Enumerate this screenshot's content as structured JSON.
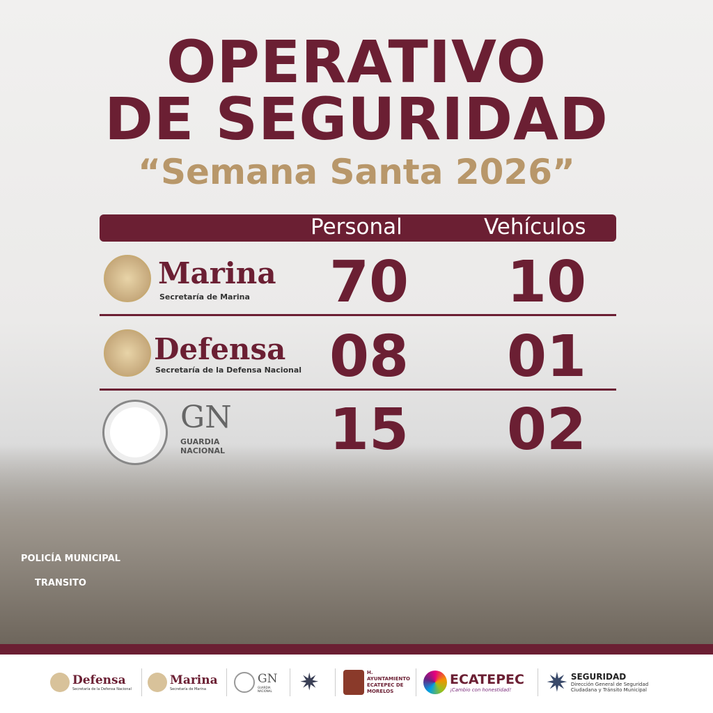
{
  "title": {
    "line1": "OPERATIVO",
    "line2": "DE SEGURIDAD",
    "subtitle": "“Semana Santa 2026”"
  },
  "table": {
    "headers": [
      "Personal",
      "Vehículos"
    ],
    "rows": [
      {
        "org": "Marina",
        "org_sub": "Secretaría de Marina",
        "personal": "70",
        "vehiculos": "10"
      },
      {
        "org": "Defensa",
        "org_sub": "Secretaría de la Defensa Nacional",
        "personal": "08",
        "vehiculos": "01"
      },
      {
        "org": "GN",
        "org_sub": "GUARDIA NACIONAL",
        "personal": "15",
        "vehiculos": "02"
      }
    ]
  },
  "photo": {
    "vehicle_label_1": "POLICÍA MUNICIPAL",
    "vehicle_label_2": "TRANSITO"
  },
  "footer": {
    "defensa": "Defensa",
    "defensa_sub": "Secretaría de la Defensa Nacional",
    "marina": "Marina",
    "marina_sub": "Secretaría de Marina",
    "gn": "GN",
    "gn_sub": "GUARDIA NACIONAL",
    "ayuntamiento": "H. AYUNTAMIENTO ECATEPEC DE MORELOS",
    "ecatepec": "ECATEPEC",
    "ecatepec_slogan": "¡Cambio con honestidad!",
    "seguridad": "SEGURIDAD",
    "seguridad_sub": "Dirección General de Seguridad Ciudadana y Tránsito Municipal"
  },
  "colors": {
    "maroon": "#6b1f33",
    "gold": "#b8976a"
  }
}
